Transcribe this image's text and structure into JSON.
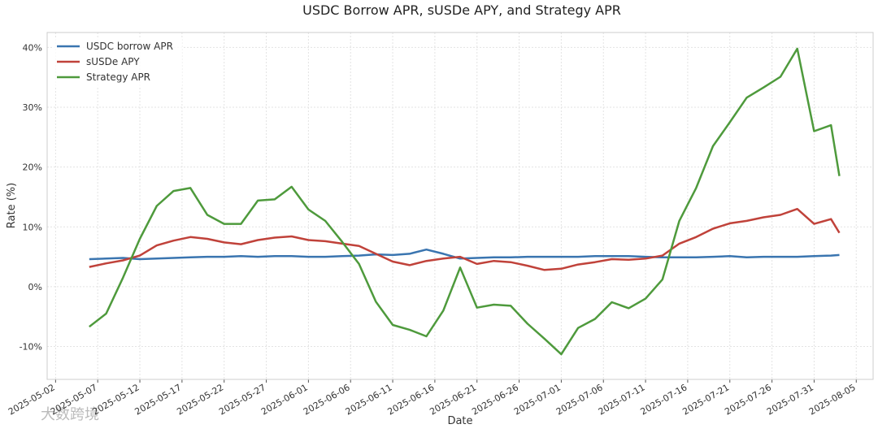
{
  "chart_data": {
    "type": "line",
    "title": "USDC Borrow APR, sUSDe APY, and Strategy APR",
    "xlabel": "Date",
    "ylabel": "Rate (%)",
    "watermark": "大数跨境",
    "grid": true,
    "legend": "upper left",
    "x": [
      "2025-05-06",
      "2025-05-08",
      "2025-05-10",
      "2025-05-12",
      "2025-05-14",
      "2025-05-16",
      "2025-05-18",
      "2025-05-20",
      "2025-05-22",
      "2025-05-24",
      "2025-05-26",
      "2025-05-28",
      "2025-05-30",
      "2025-06-01",
      "2025-06-03",
      "2025-06-05",
      "2025-06-07",
      "2025-06-09",
      "2025-06-11",
      "2025-06-13",
      "2025-06-15",
      "2025-06-17",
      "2025-06-19",
      "2025-06-21",
      "2025-06-23",
      "2025-06-25",
      "2025-06-27",
      "2025-06-29",
      "2025-07-01",
      "2025-07-03",
      "2025-07-05",
      "2025-07-07",
      "2025-07-09",
      "2025-07-11",
      "2025-07-13",
      "2025-07-15",
      "2025-07-17",
      "2025-07-19",
      "2025-07-21",
      "2025-07-23",
      "2025-07-25",
      "2025-07-27",
      "2025-07-29",
      "2025-07-31",
      "2025-08-02",
      "2025-08-03"
    ],
    "series": [
      {
        "name": "USDC borrow APR",
        "color": "#3a75b0",
        "values": [
          4.6,
          4.7,
          4.8,
          4.6,
          4.7,
          4.8,
          4.9,
          5.0,
          5.0,
          5.1,
          5.0,
          5.1,
          5.1,
          5.0,
          5.0,
          5.1,
          5.2,
          5.4,
          5.3,
          5.5,
          6.2,
          5.5,
          4.7,
          4.8,
          4.9,
          4.9,
          5.0,
          5.0,
          5.0,
          5.0,
          5.1,
          5.1,
          5.1,
          5.0,
          4.9,
          4.9,
          4.9,
          5.0,
          5.1,
          4.9,
          5.0,
          5.0,
          5.0,
          5.1,
          5.2,
          5.3
        ]
      },
      {
        "name": "sUSDe APY",
        "color": "#c0423a",
        "values": [
          3.3,
          3.9,
          4.4,
          5.2,
          6.9,
          7.7,
          8.3,
          8.0,
          7.4,
          7.1,
          7.8,
          8.2,
          8.4,
          7.8,
          7.6,
          7.2,
          6.8,
          5.5,
          4.2,
          3.6,
          4.3,
          4.7,
          5.0,
          3.8,
          4.3,
          4.1,
          3.5,
          2.8,
          3.0,
          3.7,
          4.1,
          4.6,
          4.5,
          4.7,
          5.2,
          7.2,
          8.3,
          9.7,
          10.6,
          11.0,
          11.6,
          12.0,
          13.0,
          10.5,
          11.3,
          9.0
        ]
      },
      {
        "name": "Strategy APR",
        "color": "#4e9a3c",
        "values": [
          -6.7,
          -4.5,
          1.5,
          8.0,
          13.5,
          16.0,
          16.5,
          12.0,
          10.5,
          10.5,
          14.4,
          14.6,
          16.7,
          12.9,
          11.0,
          7.5,
          3.8,
          -2.5,
          -6.4,
          -7.2,
          -8.3,
          -4.0,
          3.2,
          -3.5,
          -3.0,
          -3.2,
          -6.2,
          -8.7,
          -11.3,
          -6.9,
          -5.4,
          -2.6,
          -3.6,
          -2.0,
          1.2,
          11.0,
          16.5,
          23.5,
          27.5,
          31.6,
          33.3,
          35.1,
          39.8,
          26.0,
          27.0,
          18.5
        ]
      }
    ],
    "xlim": [
      "2025-05-01",
      "2025-08-07"
    ],
    "xticks": [
      "2025-05-02",
      "2025-05-07",
      "2025-05-12",
      "2025-05-17",
      "2025-05-22",
      "2025-05-27",
      "2025-06-01",
      "2025-06-06",
      "2025-06-11",
      "2025-06-16",
      "2025-06-21",
      "2025-06-26",
      "2025-07-01",
      "2025-07-06",
      "2025-07-11",
      "2025-07-16",
      "2025-07-21",
      "2025-07-26",
      "2025-07-31",
      "2025-08-05"
    ],
    "ylim": [
      -15.5,
      42.5
    ],
    "yticks": [
      {
        "value": -10,
        "label": "-10%"
      },
      {
        "value": 0,
        "label": "0%"
      },
      {
        "value": 10,
        "label": "10%"
      },
      {
        "value": 20,
        "label": "20%"
      },
      {
        "value": 30,
        "label": "30%"
      },
      {
        "value": 40,
        "label": "40%"
      }
    ]
  }
}
